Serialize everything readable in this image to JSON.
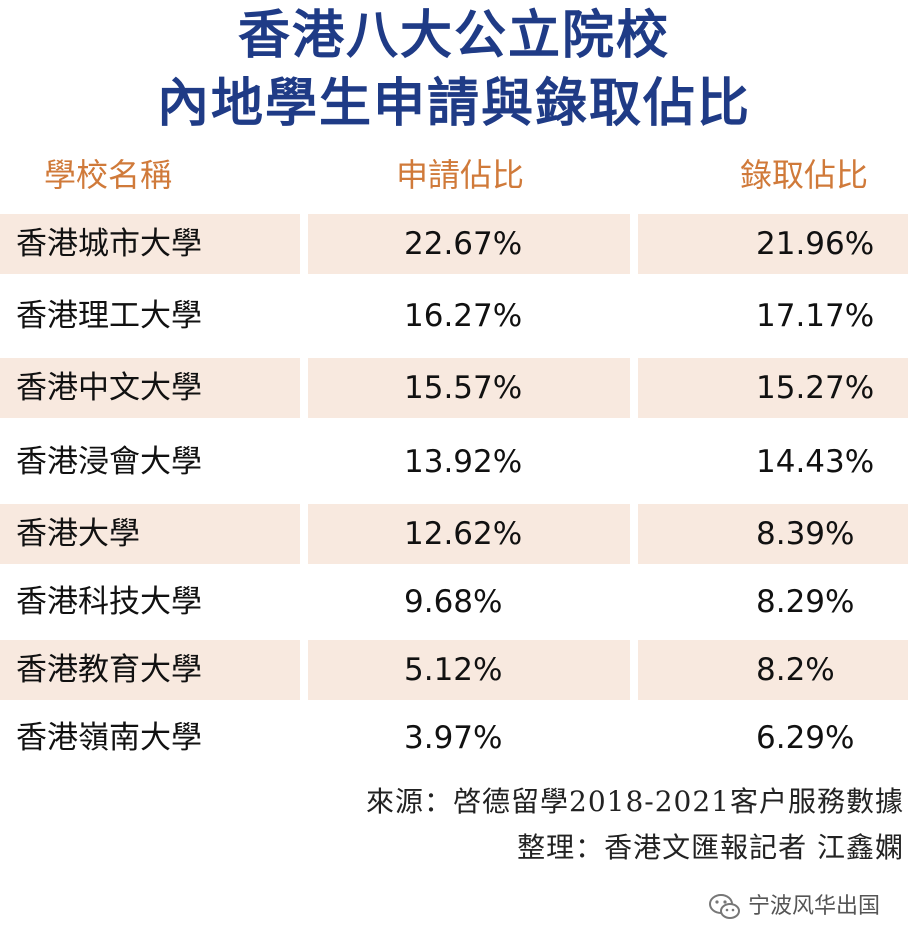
{
  "title": {
    "line1": "香港八大公立院校",
    "line2": "內地學生申請與錄取佔比"
  },
  "table": {
    "headers": [
      "學校名稱",
      "申請佔比",
      "錄取佔比"
    ],
    "rows": [
      {
        "name": "香港城市大學",
        "apply": "22.67%",
        "admit": "21.96%"
      },
      {
        "name": "香港理工大學",
        "apply": "16.27%",
        "admit": "17.17%"
      },
      {
        "name": "香港中文大學",
        "apply": "15.57%",
        "admit": "15.27%"
      },
      {
        "name": "香港浸會大學",
        "apply": "13.92%",
        "admit": "14.43%"
      },
      {
        "name": "香港大學",
        "apply": "12.62%",
        "admit": "8.39%"
      },
      {
        "name": "香港科技大學",
        "apply": "9.68%",
        "admit": "8.29%"
      },
      {
        "name": "香港教育大學",
        "apply": "5.12%",
        "admit": "8.2%"
      },
      {
        "name": "香港嶺南大學",
        "apply": "3.97%",
        "admit": "6.29%"
      }
    ]
  },
  "source": {
    "line1": "來源：啓德留學2018-2021客户服務數據",
    "line2": "整理：香港文匯報記者 江鑫嫻"
  },
  "watermark": {
    "text": "宁波风华出国",
    "icon": "wechat-icon"
  },
  "colors": {
    "title": "#1f3b86",
    "header": "#d07a3a",
    "row_shade": "#f8e9df"
  }
}
